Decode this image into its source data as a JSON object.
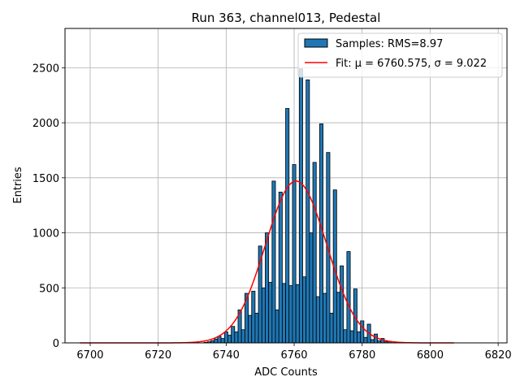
{
  "chart_data": {
    "type": "histogram",
    "title": "Run 363, channel013, Pedestal",
    "xlabel": "ADC Counts",
    "ylabel": "Entries",
    "xlim": [
      6692.6,
      6822.6
    ],
    "ylim": [
      0,
      2857
    ],
    "xticks": [
      6700,
      6720,
      6740,
      6760,
      6780,
      6800,
      6820
    ],
    "yticks": [
      0,
      500,
      1000,
      1500,
      2000,
      2500
    ],
    "grid": true,
    "legend_position": "top-right",
    "bar_color": "#1f77b4",
    "fit_color": "#ff0000",
    "bin_width": 1,
    "bins": {
      "x": [
        6734,
        6735,
        6736,
        6737,
        6738,
        6739,
        6740,
        6741,
        6742,
        6743,
        6744,
        6745,
        6746,
        6747,
        6748,
        6749,
        6750,
        6751,
        6752,
        6753,
        6754,
        6755,
        6756,
        6757,
        6758,
        6759,
        6760,
        6761,
        6762,
        6763,
        6764,
        6765,
        6766,
        6767,
        6768,
        6769,
        6770,
        6771,
        6772,
        6773,
        6774,
        6775,
        6776,
        6777,
        6778,
        6779,
        6780,
        6781,
        6782,
        6783,
        6784,
        6785,
        6786,
        6787,
        6788
      ],
      "counts": [
        5,
        10,
        20,
        35,
        60,
        40,
        100,
        70,
        150,
        100,
        300,
        120,
        450,
        250,
        470,
        270,
        880,
        500,
        1000,
        550,
        1470,
        300,
        1370,
        540,
        2130,
        520,
        1620,
        530,
        2490,
        600,
        2390,
        1000,
        1640,
        420,
        1990,
        450,
        1730,
        270,
        1390,
        460,
        700,
        120,
        830,
        110,
        490,
        100,
        200,
        50,
        170,
        30,
        80,
        20,
        40,
        10,
        15
      ]
    },
    "fit": {
      "mu": 6760.575,
      "sigma": 9.022,
      "amplitude": 1470,
      "x_range": [
        6697,
        6807
      ]
    },
    "legend": [
      {
        "label": "Samples: RMS=8.97",
        "kind": "patch"
      },
      {
        "label": "Fit: μ = 6760.575, σ = 9.022",
        "kind": "line"
      }
    ]
  }
}
